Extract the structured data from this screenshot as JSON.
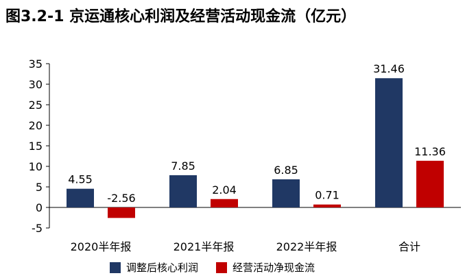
{
  "title": "图3.2-1 京运通核心利润及经营活动现金流（亿元）",
  "chart_data": {
    "type": "bar",
    "categories": [
      "2020半年报",
      "2021半年报",
      "2022半年报",
      "合计"
    ],
    "series": [
      {
        "name": "调整后核心利润",
        "color": "#203864",
        "values": [
          4.55,
          7.85,
          6.85,
          31.46
        ],
        "labels": [
          "4.55",
          "7.85",
          "6.85",
          "31.46"
        ]
      },
      {
        "name": "经营活动净现金流",
        "color": "#C00000",
        "values": [
          -2.56,
          2.04,
          0.71,
          11.36
        ],
        "labels": [
          "-2.56",
          "2.04",
          "0.71",
          "11.36"
        ]
      }
    ],
    "ylim": [
      -5,
      35
    ],
    "yticks": [
      -5,
      0,
      5,
      10,
      15,
      20,
      25,
      30,
      35
    ],
    "grid": false,
    "legend": "bottom"
  }
}
